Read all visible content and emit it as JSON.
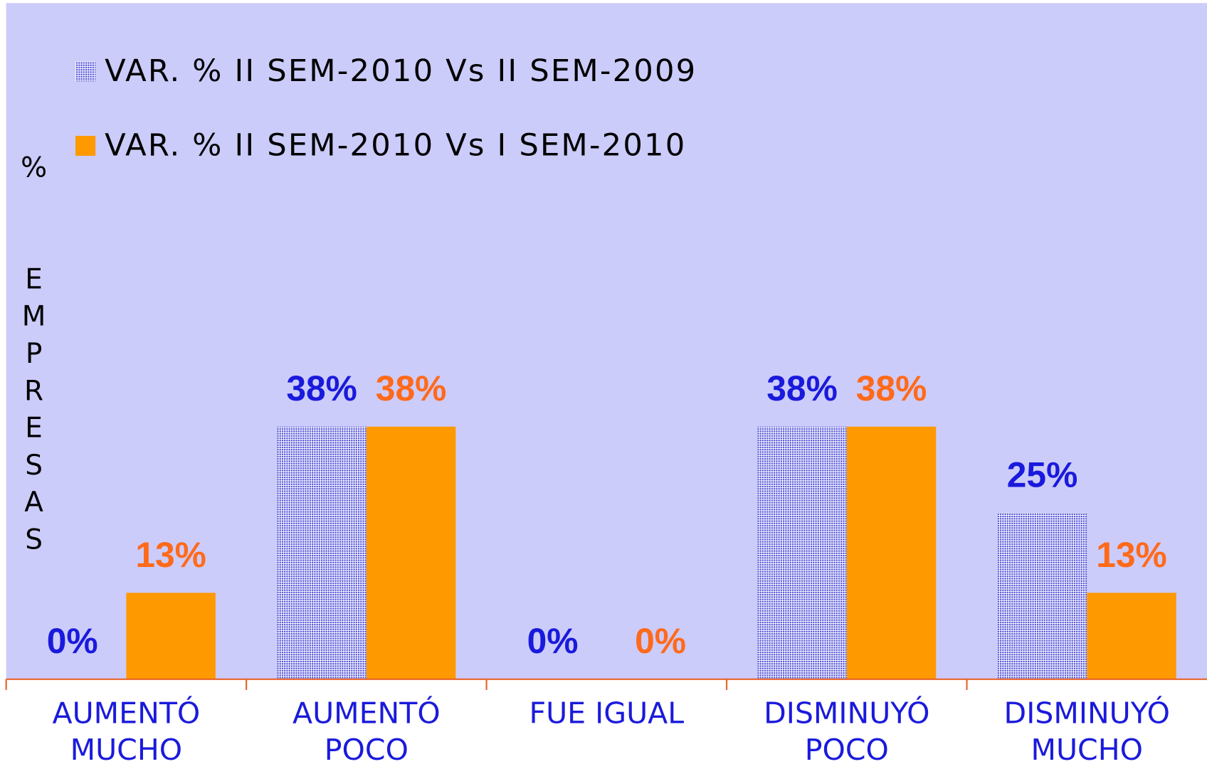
{
  "chart_data": {
    "type": "bar",
    "y_label": "% EMPRESAS",
    "categories": [
      [
        "AUMENTÓ",
        "MUCHO"
      ],
      [
        "AUMENTÓ",
        "POCO"
      ],
      [
        "FUE IGUAL"
      ],
      [
        "DISMINUYÓ",
        "POCO"
      ],
      [
        "DISMINUYÓ",
        "MUCHO"
      ]
    ],
    "series": [
      {
        "name": "VAR. % II SEM-2010 Vs II SEM-2009",
        "color": "#4a4ad8",
        "label_color": "#1a1adc",
        "values": [
          0,
          38,
          0,
          38,
          25
        ],
        "value_labels": [
          "0%",
          "38%",
          "0%",
          "38%",
          "25%"
        ]
      },
      {
        "name": "VAR. % II SEM-2010 Vs I SEM-2010",
        "color": "#ff9900",
        "label_color": "#ff6a1a",
        "values": [
          13,
          38,
          0,
          38,
          13
        ],
        "value_labels": [
          "13%",
          "38%",
          "0%",
          "38%",
          "13%"
        ]
      }
    ],
    "ylim": [
      0,
      100
    ],
    "legend": "top-left"
  }
}
